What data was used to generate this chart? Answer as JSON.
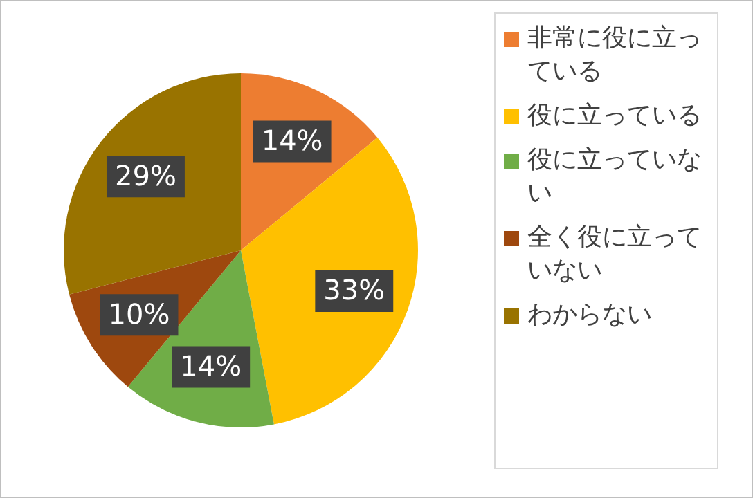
{
  "chart_data": {
    "type": "pie",
    "categories": [
      "非常に役に立っている",
      "役に立っている",
      "役に立っていない",
      "全く役に立っていない",
      "わからない"
    ],
    "values": [
      14,
      33,
      14,
      10,
      29
    ],
    "colors": [
      "#ed7d31",
      "#ffc000",
      "#70ad47",
      "#9e480e",
      "#997300"
    ],
    "value_labels": [
      "14%",
      "33%",
      "14%",
      "10%",
      "29%"
    ],
    "legend": "right"
  }
}
